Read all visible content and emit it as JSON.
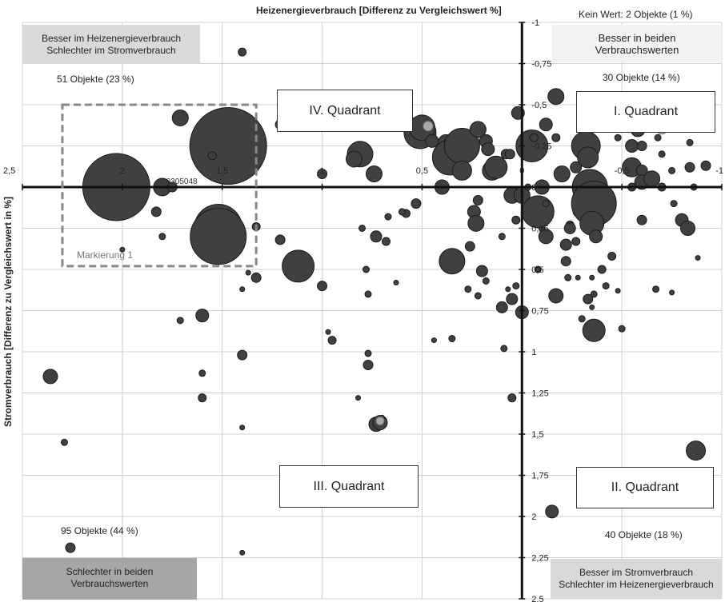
{
  "chart_data": {
    "type": "scatter",
    "title": "",
    "xlabel": "Heizenergieverbrauch [Differenz zu Vergleichswert %]",
    "ylabel": "Stromverbrauch [Differenz zu Vergleichswert in %]",
    "xlim": [
      2.5,
      -1
    ],
    "ylim": [
      -1,
      2.5
    ],
    "x_ticks": [
      "2,5",
      "2",
      "1,5",
      "1",
      "0,5",
      "0",
      "-0,5",
      "-1"
    ],
    "y_ticks": [
      "-1",
      "-0,75",
      "-0,5",
      "-0,25",
      "0",
      "0,25",
      "0,5",
      "0,75",
      "1",
      "1,25",
      "1,5",
      "1,75",
      "2",
      "2,25",
      "2,5"
    ],
    "grid": true,
    "odd_label": "-0,0305048",
    "corner_labels": {
      "top_left": [
        "Besser im Heizenergieverbrauch",
        "Schlechter im Stromverbrauch"
      ],
      "top_right": [
        "Besser in beiden",
        "Verbrauchswerten"
      ],
      "bottom_left": [
        "Schlechter in beiden",
        "Verbrauchswerten"
      ],
      "bottom_right": [
        "Besser im Stromverbrauch",
        "Schlechter im Heizenergieverbrauch"
      ]
    },
    "quadrant_labels": {
      "q1": "I. Quadrant",
      "q2": "II. Quadrant",
      "q3": "III. Quadrant",
      "q4": "IV. Quadrant"
    },
    "counts": {
      "top_left": "51 Objekte (23 %)",
      "top_right": "30 Objekte (14 %)",
      "bottom_left": "95 Objekte (44 %)",
      "bottom_right": "40 Objekte (18 %)"
    },
    "no_value": "Kein Wert: 2 Objekte (1 %)",
    "marking": {
      "label": "Markierung 1",
      "x": [
        2.3,
        1.33
      ],
      "y": [
        -0.5,
        0.48
      ]
    },
    "points": [
      [
        2.03,
        0.0,
        42
      ],
      [
        1.47,
        -0.25,
        48
      ],
      [
        1.52,
        0.25,
        30
      ],
      [
        1.52,
        0.3,
        35
      ],
      [
        1.8,
        0.0,
        11
      ],
      [
        1.71,
        -0.42,
        10
      ],
      [
        1.55,
        -0.19,
        5
      ],
      [
        1.75,
        0,
        6
      ],
      [
        1.4,
        -0.82,
        5
      ],
      [
        1.83,
        0.15,
        6
      ],
      [
        1.8,
        0.3,
        4
      ],
      [
        1.33,
        0.24,
        5
      ],
      [
        1.33,
        0.55,
        6
      ],
      [
        1.6,
        0.78,
        8
      ],
      [
        1.6,
        1.13,
        4
      ],
      [
        1.6,
        1.28,
        5
      ],
      [
        1.71,
        0.81,
        4
      ],
      [
        2.0,
        0.38,
        3
      ],
      [
        1.4,
        1.02,
        6
      ],
      [
        2.36,
        1.15,
        9
      ],
      [
        2.29,
        1.55,
        4
      ],
      [
        2.26,
        2.19,
        6
      ],
      [
        1.4,
        0.62,
        3
      ],
      [
        1.37,
        0.52,
        3
      ],
      [
        1.4,
        1.46,
        3
      ],
      [
        1.4,
        2.22,
        3
      ],
      [
        1.21,
        -0.38,
        6
      ],
      [
        1.21,
        0.32,
        6
      ],
      [
        1.12,
        0.48,
        20
      ],
      [
        1.0,
        0.6,
        6
      ],
      [
        0.95,
        0.93,
        5
      ],
      [
        1.0,
        -0.42,
        9
      ],
      [
        1.0,
        -0.08,
        6
      ],
      [
        0.97,
        0.88,
        3
      ],
      [
        1.2,
        -0.38,
        5
      ],
      [
        0.81,
        -0.2,
        16
      ],
      [
        0.84,
        -0.17,
        10
      ],
      [
        0.78,
        0.5,
        4
      ],
      [
        0.77,
        0.65,
        4
      ],
      [
        0.77,
        1.01,
        4
      ],
      [
        0.77,
        1.08,
        6
      ],
      [
        0.82,
        1.28,
        3
      ],
      [
        0.74,
        -0.08,
        10
      ],
      [
        0.73,
        0.3,
        7
      ],
      [
        0.68,
        0.33,
        5
      ],
      [
        0.63,
        0.58,
        3
      ],
      [
        0.67,
        0.18,
        4
      ],
      [
        0.73,
        1.44,
        9
      ],
      [
        0.71,
        1.43,
        9
      ],
      [
        0.7,
        1.4,
        3
      ],
      [
        0.8,
        0.25,
        4
      ],
      [
        0.58,
        0.16,
        5
      ],
      [
        0.6,
        0.15,
        4
      ],
      [
        0.53,
        0.1,
        6
      ],
      [
        0.51,
        -0.33,
        20
      ],
      [
        0.5,
        -0.36,
        16
      ],
      [
        0.45,
        -0.28,
        8
      ],
      [
        0.4,
        0.0,
        9
      ],
      [
        0.38,
        -0.27,
        10
      ],
      [
        0.36,
        -0.18,
        22
      ],
      [
        0.35,
        0.45,
        16
      ],
      [
        0.3,
        -0.25,
        22
      ],
      [
        0.3,
        -0.1,
        12
      ],
      [
        0.24,
        0.15,
        8
      ],
      [
        0.23,
        0.22,
        10
      ],
      [
        0.22,
        0.08,
        6
      ],
      [
        0.22,
        -0.35,
        10
      ],
      [
        0.18,
        -0.28,
        8
      ],
      [
        0.17,
        -0.23,
        8
      ],
      [
        0.15,
        -0.1,
        12
      ],
      [
        0.13,
        -0.12,
        14
      ],
      [
        0.05,
        0.05,
        10
      ],
      [
        0.26,
        0.36,
        6
      ],
      [
        0.2,
        0.51,
        7
      ],
      [
        0.18,
        0.57,
        4
      ],
      [
        0.27,
        0.62,
        4
      ],
      [
        0.22,
        0.66,
        4
      ],
      [
        0.35,
        0.92,
        4
      ],
      [
        0.44,
        0.93,
        3
      ],
      [
        0.03,
        0.6,
        4
      ],
      [
        0.07,
        0.62,
        3
      ],
      [
        0.05,
        0.68,
        7
      ],
      [
        0.1,
        0.3,
        4
      ],
      [
        0.1,
        0.73,
        7
      ],
      [
        0.0,
        0.76,
        8
      ],
      [
        0.09,
        0.98,
        4
      ],
      [
        0.05,
        1.28,
        5
      ],
      [
        0.02,
        -0.45,
        8
      ],
      [
        0.03,
        0.2,
        5
      ],
      [
        0.0,
        0.05,
        10
      ],
      [
        0.08,
        -0.2,
        6
      ],
      [
        0.06,
        -0.2,
        6
      ],
      [
        -0.05,
        -0.25,
        20
      ],
      [
        -0.03,
        0.0,
        4
      ],
      [
        -0.06,
        -0.3,
        5
      ],
      [
        -0.08,
        0.5,
        4
      ],
      [
        -0.08,
        0.5,
        3
      ],
      [
        -0.1,
        0.25,
        4
      ],
      [
        -0.08,
        0.15,
        20
      ],
      [
        -0.1,
        0.0,
        9
      ],
      [
        -0.12,
        0.1,
        4
      ],
      [
        -0.12,
        0.3,
        9
      ],
      [
        -0.12,
        -0.38,
        8
      ],
      [
        -0.17,
        0.66,
        9
      ],
      [
        -0.15,
        1.97,
        8
      ],
      [
        -0.17,
        -0.55,
        10
      ],
      [
        -0.17,
        -0.3,
        5
      ],
      [
        -0.2,
        -0.08,
        10
      ],
      [
        -0.22,
        0.35,
        7
      ],
      [
        -0.24,
        0.23,
        5
      ],
      [
        -0.23,
        0.55,
        4
      ],
      [
        -0.22,
        0.45,
        6
      ],
      [
        -0.27,
        -0.12,
        7
      ],
      [
        -0.28,
        0.0,
        5
      ],
      [
        -0.28,
        0.15,
        6
      ],
      [
        -0.24,
        0.25,
        7
      ],
      [
        -0.27,
        0.33,
        5
      ],
      [
        -0.28,
        0.55,
        3
      ],
      [
        -0.3,
        0.8,
        4
      ],
      [
        -0.32,
        -0.25,
        18
      ],
      [
        -0.33,
        -0.18,
        13
      ],
      [
        -0.34,
        0.0,
        22
      ],
      [
        -0.36,
        0.1,
        28
      ],
      [
        -0.35,
        0.22,
        15
      ],
      [
        -0.37,
        0.3,
        8
      ],
      [
        -0.36,
        0.87,
        14
      ],
      [
        -0.33,
        0.68,
        6
      ],
      [
        -0.35,
        0.55,
        3
      ],
      [
        -0.35,
        0.73,
        3
      ],
      [
        -0.36,
        0.65,
        4
      ],
      [
        -0.36,
        -0.52,
        4
      ],
      [
        -0.4,
        0.5,
        5
      ],
      [
        -0.42,
        0.6,
        4
      ],
      [
        -0.45,
        0.42,
        5
      ],
      [
        -0.48,
        -0.3,
        4
      ],
      [
        -0.5,
        -0.52,
        7
      ],
      [
        -0.53,
        -0.4,
        8
      ],
      [
        -0.53,
        -0.5,
        4
      ],
      [
        -0.48,
        0.63,
        3
      ],
      [
        -0.55,
        -0.12,
        12
      ],
      [
        -0.55,
        -0.25,
        8
      ],
      [
        -0.55,
        0.0,
        5
      ],
      [
        -0.5,
        0.86,
        4
      ],
      [
        -0.58,
        -0.35,
        9
      ],
      [
        -0.6,
        -0.25,
        6
      ],
      [
        -0.6,
        -0.1,
        7
      ],
      [
        -0.6,
        -0.03,
        9
      ],
      [
        -0.65,
        -0.05,
        10
      ],
      [
        -0.68,
        -0.3,
        4
      ],
      [
        -0.7,
        0.0,
        5
      ],
      [
        -0.67,
        0.62,
        4
      ],
      [
        -0.6,
        0.2,
        6
      ],
      [
        -0.7,
        -0.2,
        4
      ],
      [
        -0.76,
        0.1,
        4
      ],
      [
        -0.75,
        -0.1,
        4
      ],
      [
        -0.8,
        0.2,
        8
      ],
      [
        -0.83,
        0.25,
        9
      ],
      [
        -0.84,
        -0.12,
        6
      ],
      [
        -0.86,
        0.0,
        4
      ],
      [
        -0.88,
        0.43,
        3
      ],
      [
        -0.93,
        -0.42,
        6
      ],
      [
        -0.87,
        1.6,
        12
      ],
      [
        -0.75,
        0.64,
        3
      ],
      [
        -0.84,
        -0.27,
        4
      ],
      [
        -0.92,
        -0.13,
        6
      ]
    ],
    "light_points": [
      [
        1.0,
        -0.43,
        6
      ],
      [
        1.21,
        -0.37,
        4
      ],
      [
        0.47,
        -0.37,
        6
      ],
      [
        -0.62,
        -0.5,
        8
      ],
      [
        -0.67,
        -0.5,
        6
      ],
      [
        -0.7,
        -0.35,
        6
      ],
      [
        -0.9,
        -0.43,
        6
      ],
      [
        0.71,
        1.42,
        5
      ],
      [
        0.97,
        1.77,
        7
      ],
      [
        0.97,
        1.77,
        6
      ]
    ]
  }
}
